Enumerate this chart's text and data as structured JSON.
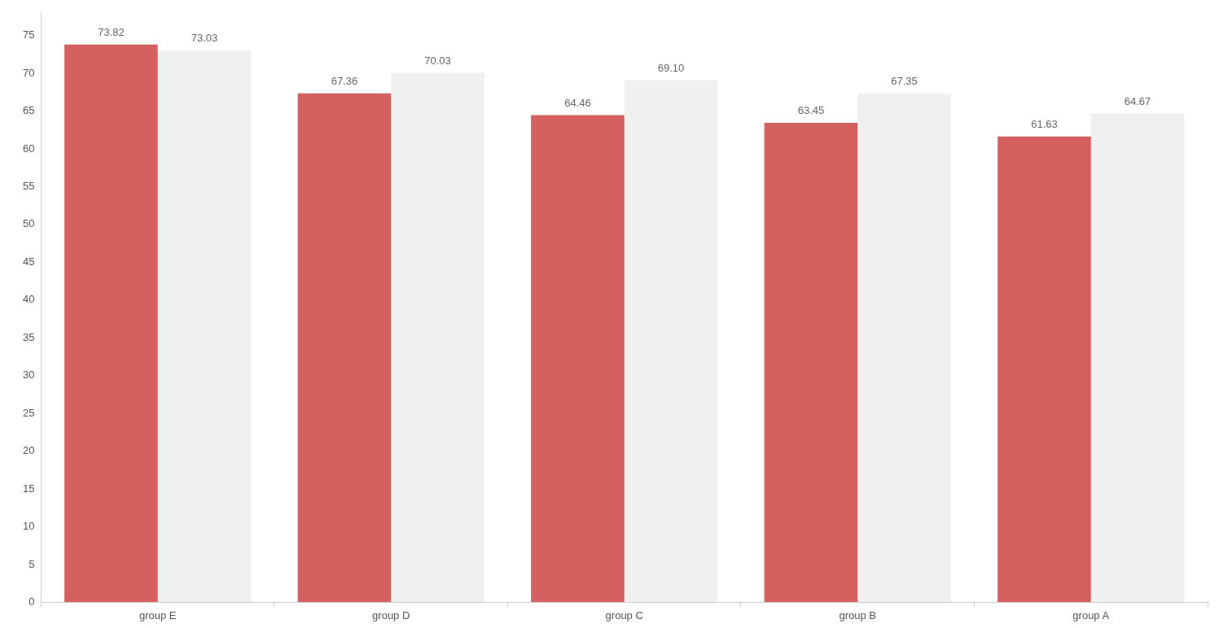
{
  "chart_data": {
    "type": "bar",
    "categories": [
      "group E",
      "group D",
      "group C",
      "group B",
      "group A"
    ],
    "series": [
      {
        "color": "#d46160",
        "values": [
          73.82,
          67.36,
          64.46,
          63.45,
          61.63
        ],
        "value_labels": [
          "73.82",
          "67.36",
          "64.46",
          "63.45",
          "61.63"
        ]
      },
      {
        "color": "#f0f0f0",
        "values": [
          73.03,
          70.03,
          69.1,
          67.35,
          64.67
        ],
        "value_labels": [
          "73.03",
          "70.03",
          "69.10",
          "67.35",
          "64.67"
        ]
      }
    ],
    "ylim": [
      0,
      78
    ],
    "yticks": [
      0,
      5,
      10,
      15,
      20,
      25,
      30,
      35,
      40,
      45,
      50,
      55,
      60,
      65,
      70,
      75
    ],
    "grid": false,
    "legend": false
  }
}
